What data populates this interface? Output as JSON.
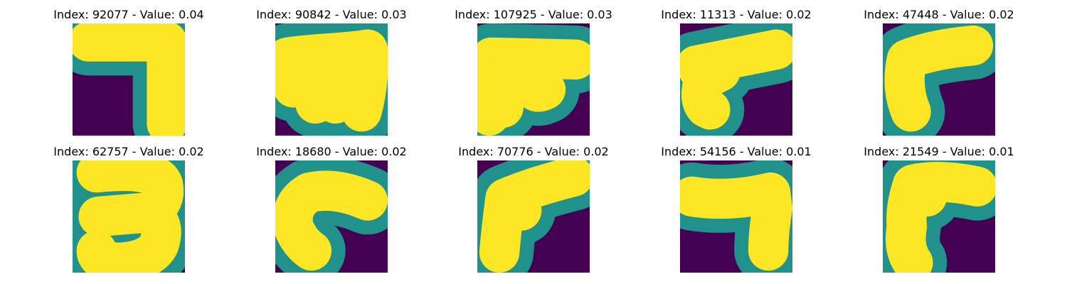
{
  "figure": {
    "colors": {
      "background": "#440154",
      "stroke_edge": "#21918c",
      "stroke_core": "#fde725"
    },
    "panels": [
      {
        "title": "Index: 92077 - Value: 0.04"
      },
      {
        "title": "Index: 90842 - Value: 0.03"
      },
      {
        "title": "Index: 107925 - Value: 0.03"
      },
      {
        "title": "Index: 11313 - Value: 0.02"
      },
      {
        "title": "Index: 47448 - Value: 0.02"
      },
      {
        "title": "Index: 62757 - Value: 0.02"
      },
      {
        "title": "Index: 18680 - Value: 0.02"
      },
      {
        "title": "Index: 70776 - Value: 0.02"
      },
      {
        "title": "Index: 54156 - Value: 0.01"
      },
      {
        "title": "Index: 21549 - Value: 0.01"
      }
    ]
  }
}
